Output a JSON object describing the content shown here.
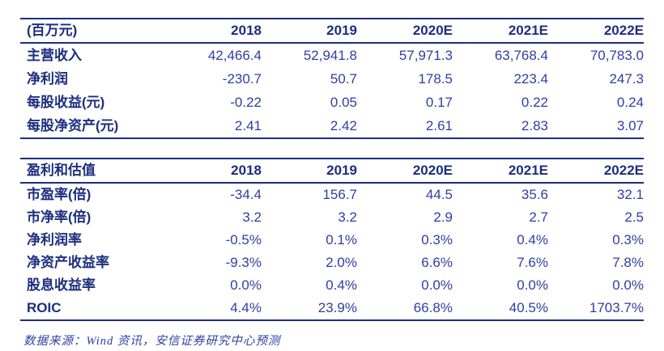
{
  "colors": {
    "navy": "#1c2e7f",
    "number_blue": "#2e3fa3",
    "background": "#ffffff"
  },
  "table1": {
    "header": [
      "(百万元)",
      "2018",
      "2019",
      "2020E",
      "2021E",
      "2022E"
    ],
    "rows": [
      {
        "label": "主营收入",
        "values": [
          "42,466.4",
          "52,941.8",
          "57,971.3",
          "63,768.4",
          "70,783.0"
        ]
      },
      {
        "label": "净利润",
        "values": [
          "-230.7",
          "50.7",
          "178.5",
          "223.4",
          "247.3"
        ]
      },
      {
        "label": "每股收益(元)",
        "values": [
          "-0.22",
          "0.05",
          "0.17",
          "0.22",
          "0.24"
        ]
      },
      {
        "label": "每股净资产(元)",
        "values": [
          "2.41",
          "2.42",
          "2.61",
          "2.83",
          "3.07"
        ]
      }
    ]
  },
  "table2": {
    "header": [
      "盈利和估值",
      "2018",
      "2019",
      "2020E",
      "2021E",
      "2022E"
    ],
    "rows": [
      {
        "label": "市盈率(倍)",
        "values": [
          "-34.4",
          "156.7",
          "44.5",
          "35.6",
          "32.1"
        ]
      },
      {
        "label": "市净率(倍)",
        "values": [
          "3.2",
          "3.2",
          "2.9",
          "2.7",
          "2.5"
        ]
      },
      {
        "label": "净利润率",
        "values": [
          "-0.5%",
          "0.1%",
          "0.3%",
          "0.4%",
          "0.3%"
        ]
      },
      {
        "label": "净资产收益率",
        "values": [
          "-9.3%",
          "2.0%",
          "6.6%",
          "7.6%",
          "7.8%"
        ]
      },
      {
        "label": "股息收益率",
        "values": [
          "0.0%",
          "0.4%",
          "0.0%",
          "0.0%",
          "0.0%"
        ]
      },
      {
        "label": "ROIC",
        "values": [
          "4.4%",
          "23.9%",
          "66.8%",
          "40.5%",
          "1703.7%"
        ]
      }
    ]
  },
  "footer": {
    "source_note": "数据来源：Wind 资讯，安信证券研究中心预测"
  }
}
